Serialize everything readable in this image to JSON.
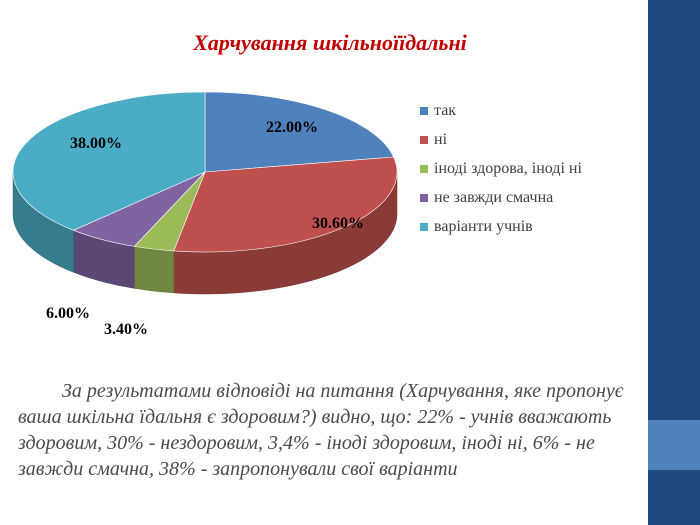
{
  "slide": {
    "title": "Харчування шкільноїїдальні",
    "body": "За результатами відповіді на питання (Харчування, яке пропонує ваша шкільна їдальня є здоровим?) видно, що: 22% - учнів вважають здоровим, 30% - нездоровим, 3,4% - іноді здоровим, іноді ні, 6% - не завжди смачна, 38% - запропонували свої варіанти"
  },
  "chart_data": {
    "type": "pie",
    "style": "3d",
    "title": "Харчування шкільноїїдальні",
    "legend_position": "right",
    "series": [
      {
        "name": "так",
        "value": 22.0,
        "label": "22.00%",
        "color": "#4f81bd"
      },
      {
        "name": "ні",
        "value": 30.6,
        "label": "30.60%",
        "color": "#c0504d"
      },
      {
        "name": "іноді здорова, іноді ні",
        "value": 3.4,
        "label": "3.40%",
        "color": "#9bbb59"
      },
      {
        "name": "не завжди смачна",
        "value": 6.0,
        "label": "6.00%",
        "color": "#8064a2"
      },
      {
        "name": "варіанти учнів",
        "value": 38.0,
        "label": "38.00%",
        "color": "#4bacc6"
      }
    ]
  },
  "theme": {
    "sidebar_color": "#1f497d",
    "sidebar_accent": "#4f81bd",
    "title_color": "#c00000"
  }
}
